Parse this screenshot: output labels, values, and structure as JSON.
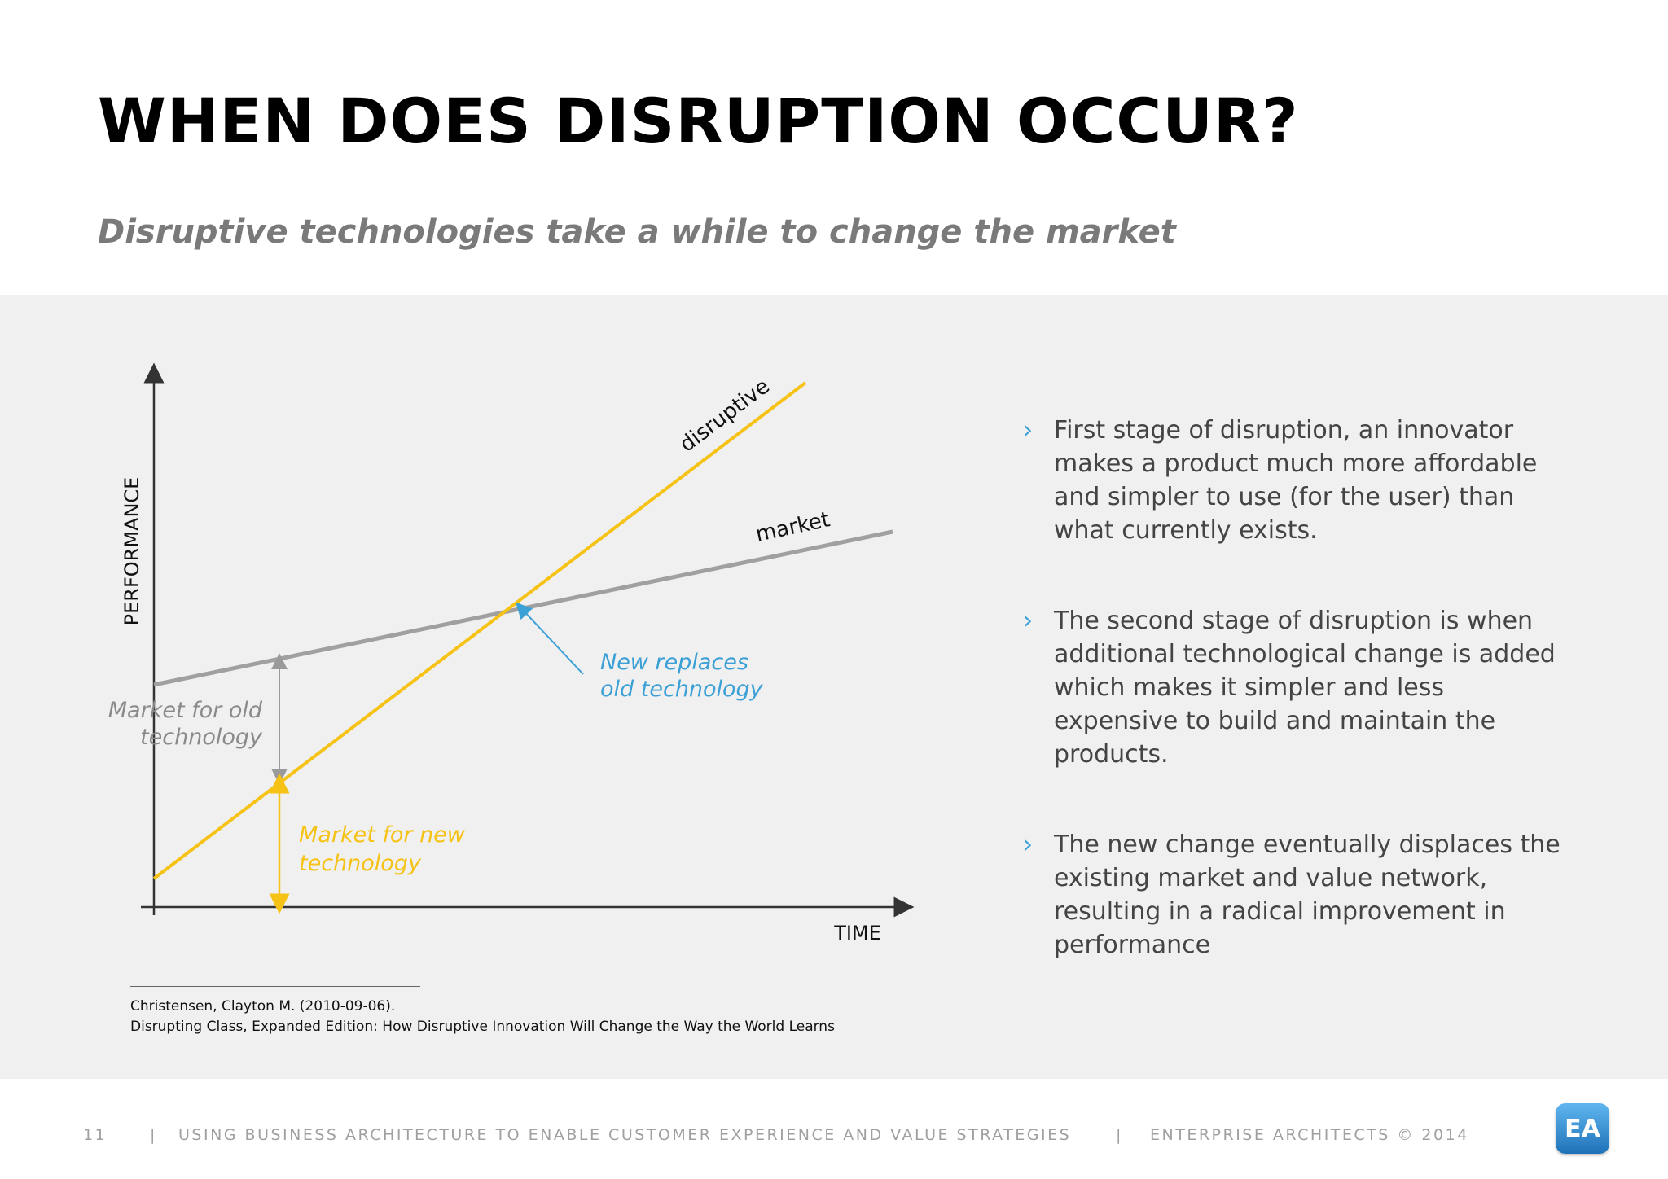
{
  "slide": {
    "title": "WHEN DOES DISRUPTION OCCUR?",
    "subtitle": "Disruptive technologies take a while to change the market"
  },
  "diagram": {
    "y_axis_label": "PERFORMANCE",
    "x_axis_label": "TIME",
    "lines": {
      "disruptive": "disruptive",
      "market": "market"
    },
    "annotations": {
      "old_market_line1": "Market for old",
      "old_market_line2": "technology",
      "new_market_line1": "Market for new",
      "new_market_line2": "technology",
      "crossover_line1": "New replaces",
      "crossover_line2": "old technology"
    },
    "colors": {
      "disruptive": "#f5c215",
      "market": "#a0a0a0",
      "crossover": "#3aa0d6",
      "axis": "#333333"
    }
  },
  "bullets": [
    {
      "marker": "›",
      "text": "First stage of disruption, an innovator makes a product much more affordable and simpler to use (for the user) than what currently exists."
    },
    {
      "marker": "›",
      "text": "The second stage of disruption is when additional technological change is added which makes it simpler and  less expensive to build and maintain the products."
    },
    {
      "marker": "›",
      "text": "The new change eventually displaces the existing market and value network, resulting in a radical improvement in performance"
    }
  ],
  "citation": {
    "line1": "Christensen, Clayton M. (2010-09-06).",
    "line2": "Disrupting Class, Expanded Edition: How Disruptive Innovation Will Change the Way the World Learns"
  },
  "footer": {
    "page_number": "11",
    "separator": "|",
    "deck_title": "USING BUSINESS ARCHITECTURE TO ENABLE CUSTOMER EXPERIENCE AND VALUE STRATEGIES",
    "copyright": "ENTERPRISE ARCHITECTS © 2014",
    "logo_text": "EA"
  },
  "theme": {
    "accent": "#3aa0d6",
    "panel_background": "#f0f0f0"
  }
}
